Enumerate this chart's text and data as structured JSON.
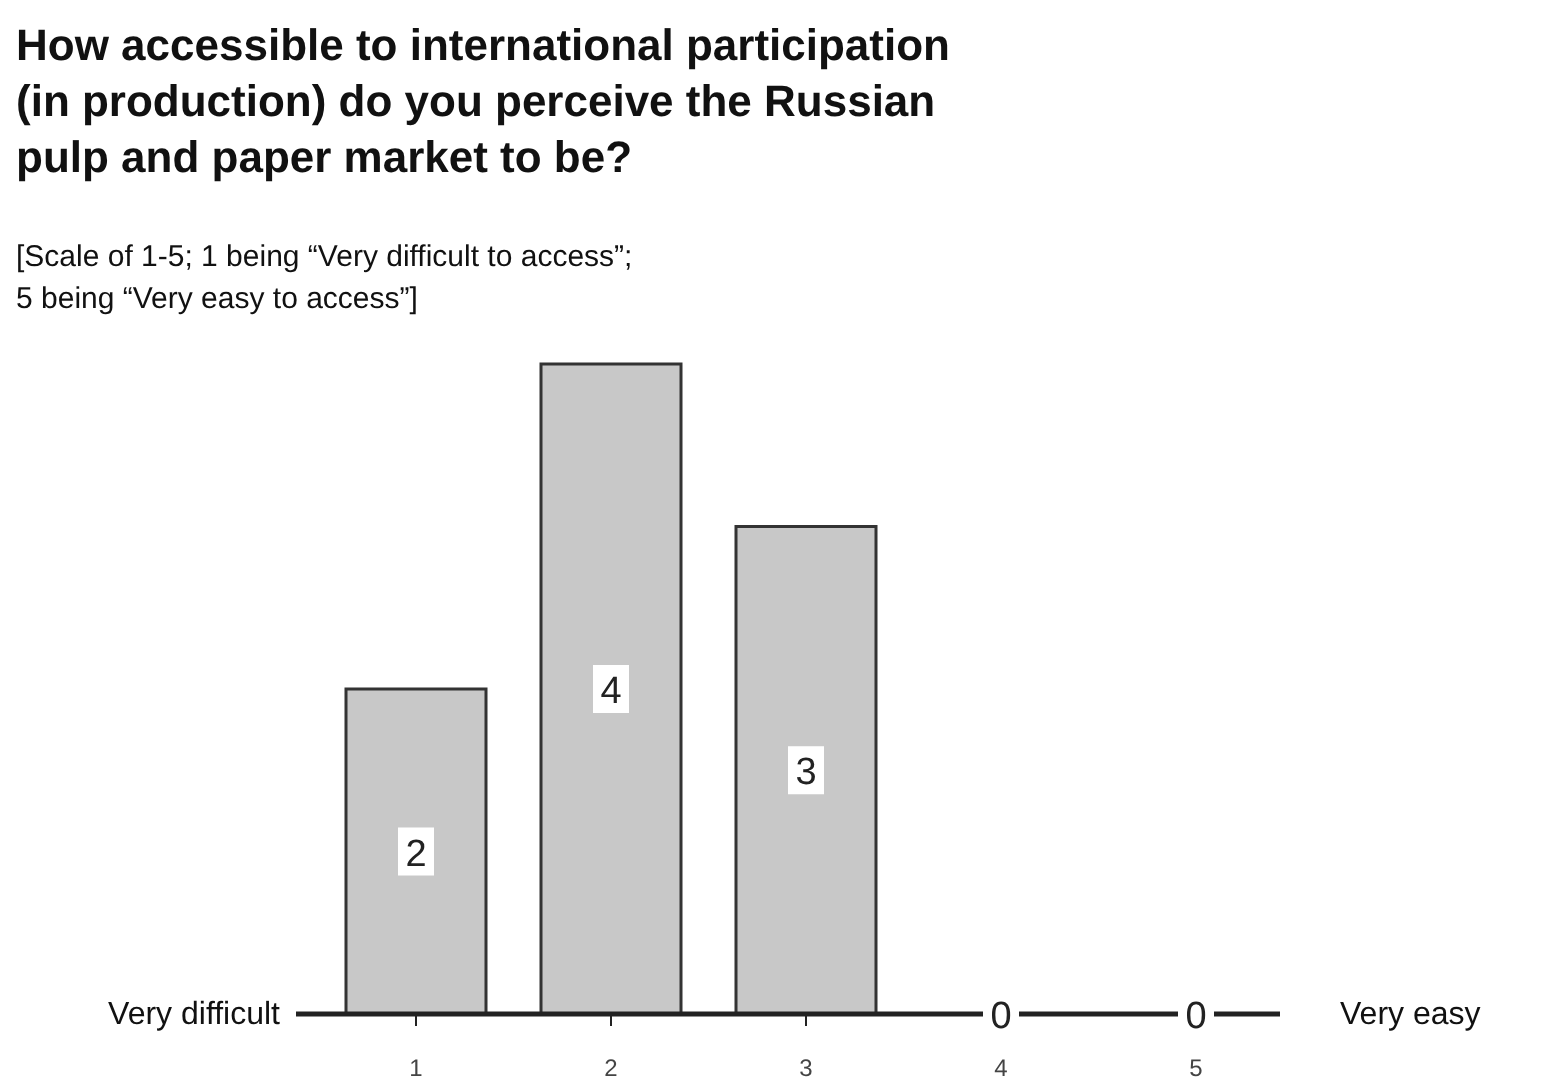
{
  "chart_data": {
    "type": "bar",
    "title": "How accessible to international participation\n(in production) do you perceive the Russian\npulp and paper market to be?",
    "subtitle": "[Scale of 1-5; 1 being “Very difficult to access”;\n5 being “Very easy to access”]",
    "categories": [
      "1",
      "2",
      "3",
      "4",
      "5"
    ],
    "values": [
      2,
      4,
      3,
      0,
      0
    ],
    "color": "#c8c8c8",
    "data_labels": true,
    "annotations": [
      "Very difficult",
      "Very easy"
    ]
  }
}
